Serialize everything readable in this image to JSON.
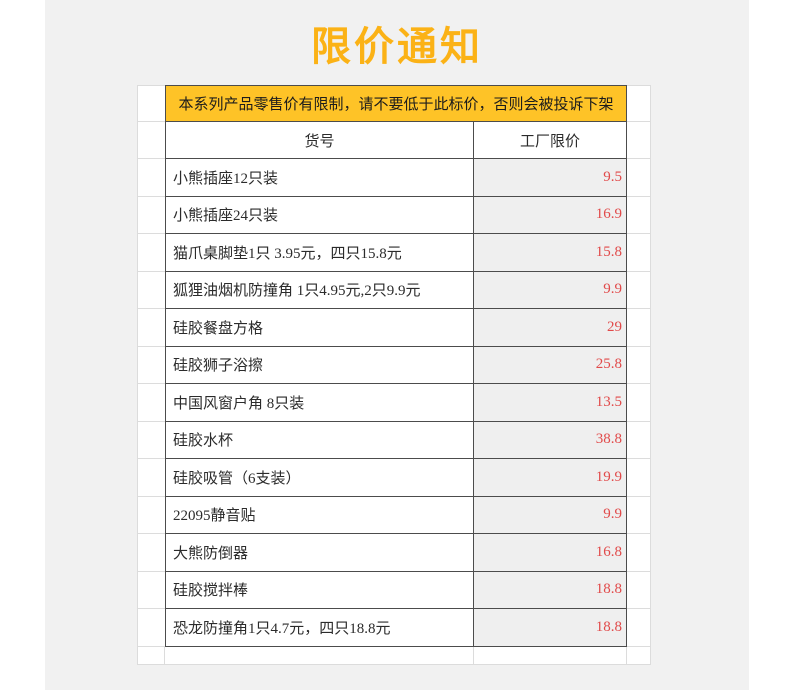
{
  "page": {
    "title": "限价通知"
  },
  "banner": {
    "text": "本系列产品零售价有限制，请不要低于此标价，否则会被投诉下架"
  },
  "table": {
    "headers": [
      "货号",
      "工厂限价"
    ],
    "rows": [
      {
        "item": "小熊插座12只装",
        "price": "9.5"
      },
      {
        "item": "小熊插座24只装",
        "price": "16.9"
      },
      {
        "item": "猫爪桌脚垫1只 3.95元，四只15.8元",
        "price": "15.8"
      },
      {
        "item": "狐狸油烟机防撞角 1只4.95元,2只9.9元",
        "price": "9.9"
      },
      {
        "item": "硅胶餐盘方格",
        "price": "29"
      },
      {
        "item": "硅胶狮子浴擦",
        "price": "25.8"
      },
      {
        "item": "中国风窗户角 8只装",
        "price": "13.5"
      },
      {
        "item": "硅胶水杯",
        "price": "38.8"
      },
      {
        "item": "硅胶吸管（6支装）",
        "price": "19.9"
      },
      {
        "item": "22095静音贴",
        "price": "9.9"
      },
      {
        "item": "大熊防倒器",
        "price": "16.8"
      },
      {
        "item": "硅胶搅拌棒",
        "price": "18.8"
      },
      {
        "item": "恐龙防撞角1只4.7元，四只18.8元",
        "price": "18.8"
      }
    ]
  },
  "colors": {
    "title_orange": "#fbb216",
    "banner_yellow": "#fec327",
    "price_red": "#e14a4a",
    "dark_border": "#4c4c4c",
    "light_grid": "#dcdcdc",
    "canvas_gray": "#f1f1f1",
    "price_cell_bg": "#efefef"
  }
}
